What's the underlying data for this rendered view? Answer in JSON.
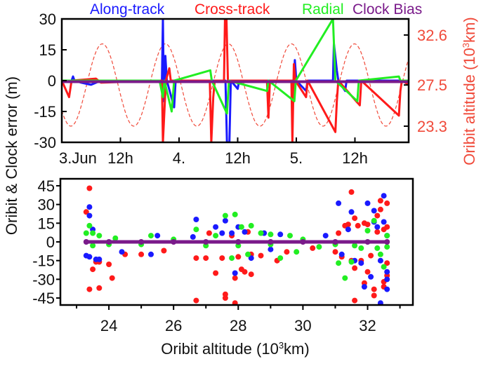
{
  "colors": {
    "along": "#1a1aff",
    "cross": "#ff1a1a",
    "radial": "#22ee22",
    "clock": "#7a1a8a",
    "altitude": "#f04a3a"
  },
  "y_title": "Oribit & Clock error (m)",
  "right_title": {
    "pre": "Oribit altitude  (10",
    "sup": "3",
    "post": "km)"
  },
  "bottom_x_title": {
    "pre": "Oribit altitude  (10",
    "sup": "3",
    "post": "km)"
  },
  "chart_data": [
    {
      "type": "line",
      "title": "",
      "legend": [
        "Along-track",
        "Cross-track",
        "Radial",
        "Clock Bias"
      ],
      "legend_placement": "top",
      "xlabel": "",
      "ylabel": "Oribit & Clock error (m)",
      "x_units": "hours since 3 Jun 00:00",
      "xlim": [
        0,
        71
      ],
      "ylim": [
        -30,
        30
      ],
      "y_ticks": [
        30,
        15,
        0,
        -15,
        -30
      ],
      "x_ticks": [
        {
          "x": 0,
          "label": "3.Jun"
        },
        {
          "x": 12,
          "label": "12h"
        },
        {
          "x": 24,
          "label": "4."
        },
        {
          "x": 36,
          "label": "12h"
        },
        {
          "x": 48,
          "label": "5."
        },
        {
          "x": 60,
          "label": "12h"
        }
      ],
      "right_axis": {
        "label": "Oribit altitude (10^3km)",
        "ylim": [
          21.65,
          34.24
        ],
        "ticks": [
          "32.6",
          "27.5",
          "23.3"
        ],
        "tick_values": [
          32.6,
          27.5,
          23.3
        ]
      },
      "altitude_curve": {
        "mean": 27.5,
        "amplitude": 4.2,
        "period_hours": 12.9,
        "peak_hour": 8.3,
        "style": "dashed"
      },
      "series": [
        {
          "name": "Along-track",
          "key": "along",
          "points": [
            [
              0,
              0
            ],
            [
              2,
              0
            ],
            [
              2.3,
              2
            ],
            [
              2.6,
              0
            ],
            [
              4,
              -1
            ],
            [
              6,
              -2
            ],
            [
              8,
              0
            ],
            [
              20,
              0
            ],
            [
              20.5,
              0
            ],
            [
              20.7,
              30
            ],
            [
              20.9,
              -10
            ],
            [
              21.2,
              12
            ],
            [
              21.5,
              0
            ],
            [
              23,
              -13
            ],
            [
              23.3,
              0
            ],
            [
              33.5,
              0
            ],
            [
              33.8,
              -30
            ],
            [
              34.3,
              -30
            ],
            [
              34.6,
              0
            ],
            [
              36,
              -4
            ],
            [
              36.3,
              0
            ],
            [
              47.5,
              0
            ],
            [
              47.7,
              10
            ],
            [
              48,
              0
            ],
            [
              50,
              -5
            ],
            [
              50.3,
              0
            ],
            [
              55.5,
              0
            ],
            [
              55.7,
              18
            ],
            [
              56.3,
              5
            ],
            [
              56.6,
              0
            ],
            [
              58,
              -5
            ],
            [
              58.3,
              0
            ],
            [
              71,
              0
            ]
          ]
        },
        {
          "name": "Cross-track",
          "key": "cross",
          "points": [
            [
              0,
              0
            ],
            [
              1.5,
              -8
            ],
            [
              2,
              0
            ],
            [
              7,
              1
            ],
            [
              8,
              -1
            ],
            [
              20.5,
              0
            ],
            [
              20.7,
              -30
            ],
            [
              21,
              -15
            ],
            [
              21.3,
              0
            ],
            [
              22,
              6
            ],
            [
              22.3,
              0
            ],
            [
              30.3,
              0
            ],
            [
              30.6,
              -30
            ],
            [
              31,
              -8
            ],
            [
              31.3,
              0
            ],
            [
              33.2,
              0
            ],
            [
              33.4,
              30
            ],
            [
              33.7,
              30
            ],
            [
              34,
              0
            ],
            [
              42,
              0
            ],
            [
              42.3,
              -18
            ],
            [
              42.6,
              0
            ],
            [
              47,
              0
            ],
            [
              47.2,
              -30
            ],
            [
              47.5,
              8
            ],
            [
              47.8,
              0
            ],
            [
              50,
              -8
            ],
            [
              50.3,
              0
            ],
            [
              56,
              -25
            ],
            [
              56.3,
              -10
            ],
            [
              56.6,
              0
            ],
            [
              61,
              -12
            ],
            [
              61.3,
              0
            ],
            [
              69,
              -17
            ],
            [
              69.3,
              -5
            ],
            [
              69.6,
              0
            ],
            [
              71,
              -2
            ]
          ]
        },
        {
          "name": "Radial",
          "key": "radial",
          "points": [
            [
              0,
              0
            ],
            [
              20,
              0
            ],
            [
              20.7,
              -8
            ],
            [
              21,
              0
            ],
            [
              22.5,
              -15
            ],
            [
              23,
              0
            ],
            [
              30.4,
              5
            ],
            [
              30.7,
              0
            ],
            [
              33.8,
              -16
            ],
            [
              34.2,
              0
            ],
            [
              42,
              -5
            ],
            [
              42.3,
              0
            ],
            [
              47.6,
              -10
            ],
            [
              47.9,
              0
            ],
            [
              55.5,
              30
            ],
            [
              56,
              0
            ],
            [
              60.5,
              -10
            ],
            [
              60.8,
              0
            ],
            [
              69,
              2
            ],
            [
              69.3,
              0
            ],
            [
              71,
              0
            ]
          ]
        },
        {
          "name": "Clock Bias",
          "key": "clock",
          "points": [
            [
              0,
              -0.5
            ],
            [
              71,
              -0.5
            ]
          ]
        }
      ]
    },
    {
      "type": "scatter",
      "title": "",
      "xlabel": "Oribit altitude (10^3km)",
      "ylabel": "Oribit & Clock error (m)",
      "xlim": [
        22.5,
        33.4
      ],
      "ylim": [
        -50.6,
        50.6
      ],
      "x_ticks": [
        24,
        26,
        28,
        30,
        32
      ],
      "x_minor_ticks": [
        23,
        25,
        27,
        29,
        31,
        33
      ],
      "y_ticks": [
        45,
        30,
        15,
        0,
        -15,
        -30,
        -45
      ],
      "series": [
        {
          "name": "Along-track",
          "key": "along",
          "points": [
            [
              23.4,
              28
            ],
            [
              23.4,
              21
            ],
            [
              23.3,
              -11
            ],
            [
              23.4,
              -12
            ],
            [
              23.5,
              10
            ],
            [
              23.6,
              -14
            ],
            [
              23.7,
              -14
            ],
            [
              24.4,
              -8
            ],
            [
              25.3,
              -10
            ],
            [
              25.5,
              5
            ],
            [
              26.7,
              18
            ],
            [
              26.6,
              4
            ],
            [
              27.3,
              12
            ],
            [
              27.5,
              7
            ],
            [
              27.6,
              17
            ],
            [
              27.9,
              -25
            ],
            [
              27.8,
              7
            ],
            [
              28.0,
              12
            ],
            [
              28.2,
              8
            ],
            [
              28.4,
              -13
            ],
            [
              28.8,
              7
            ],
            [
              29.0,
              -6
            ],
            [
              29.3,
              6
            ],
            [
              30.7,
              5
            ],
            [
              31.1,
              31
            ],
            [
              31.2,
              -10
            ],
            [
              31.5,
              24
            ],
            [
              31.4,
              10
            ],
            [
              31.6,
              -15
            ],
            [
              31.8,
              -17
            ],
            [
              32.0,
              31
            ],
            [
              32.1,
              -28
            ],
            [
              32.2,
              25
            ],
            [
              32.3,
              12
            ],
            [
              32.4,
              -49
            ],
            [
              32.5,
              37
            ],
            [
              32.6,
              -24
            ],
            [
              32.6,
              -38
            ],
            [
              32.6,
              -30
            ],
            [
              31.9,
              -36
            ],
            [
              32.2,
              16
            ],
            [
              32.4,
              -15
            ],
            [
              32.6,
              5
            ],
            [
              32.5,
              16
            ]
          ]
        },
        {
          "name": "Cross-track",
          "key": "cross",
          "points": [
            [
              23.3,
              24
            ],
            [
              23.4,
              43
            ],
            [
              23.4,
              -38
            ],
            [
              23.6,
              -16
            ],
            [
              23.5,
              -22
            ],
            [
              23.7,
              -37
            ],
            [
              23.7,
              -16
            ],
            [
              24.0,
              -18
            ],
            [
              24.1,
              -29
            ],
            [
              24.5,
              -10
            ],
            [
              25.0,
              -10
            ],
            [
              25.7,
              -7
            ],
            [
              26.7,
              -13
            ],
            [
              26.7,
              -47
            ],
            [
              27.0,
              -13
            ],
            [
              27.1,
              7
            ],
            [
              27.3,
              -25
            ],
            [
              27.5,
              -13
            ],
            [
              27.6,
              -42
            ],
            [
              27.6,
              -45
            ],
            [
              27.8,
              5
            ],
            [
              27.9,
              -29
            ],
            [
              27.9,
              -49
            ],
            [
              28.0,
              -12
            ],
            [
              28.1,
              -22
            ],
            [
              28.2,
              -24
            ],
            [
              28.3,
              8
            ],
            [
              28.4,
              -26
            ],
            [
              28.4,
              -10
            ],
            [
              28.7,
              -11
            ],
            [
              29.2,
              -15
            ],
            [
              29.5,
              -8
            ],
            [
              30.3,
              -5
            ],
            [
              31.0,
              -8
            ],
            [
              31.1,
              7
            ],
            [
              31.2,
              -12
            ],
            [
              31.3,
              13
            ],
            [
              31.4,
              14
            ],
            [
              31.5,
              40
            ],
            [
              31.5,
              -15
            ],
            [
              31.6,
              19
            ],
            [
              31.6,
              -21
            ],
            [
              31.6,
              -47
            ],
            [
              31.8,
              -15
            ],
            [
              31.9,
              -33
            ],
            [
              32.0,
              -24
            ],
            [
              32.1,
              -11
            ],
            [
              32.2,
              -38
            ],
            [
              32.2,
              -43
            ],
            [
              32.3,
              21
            ],
            [
              32.4,
              26
            ],
            [
              32.4,
              33
            ],
            [
              32.5,
              -36
            ],
            [
              32.5,
              -32
            ],
            [
              32.6,
              31
            ],
            [
              32.6,
              -27
            ],
            [
              32.6,
              12
            ],
            [
              32.6,
              -17
            ],
            [
              32.5,
              10
            ],
            [
              32.3,
              8
            ],
            [
              32.0,
              14
            ],
            [
              31.7,
              13
            ],
            [
              31.9,
              15
            ]
          ]
        },
        {
          "name": "Radial",
          "key": "radial",
          "points": [
            [
              23.3,
              7
            ],
            [
              23.4,
              13
            ],
            [
              23.5,
              7
            ],
            [
              23.7,
              5
            ],
            [
              24.2,
              3
            ],
            [
              25.3,
              5
            ],
            [
              26.7,
              10
            ],
            [
              27.3,
              5
            ],
            [
              27.6,
              21
            ],
            [
              27.9,
              22
            ],
            [
              27.8,
              -13
            ],
            [
              28.1,
              12
            ],
            [
              28.4,
              13
            ],
            [
              28.3,
              -10
            ],
            [
              28.7,
              7
            ],
            [
              29.0,
              6
            ],
            [
              29.3,
              -13
            ],
            [
              29.6,
              5
            ],
            [
              29.8,
              -8
            ],
            [
              30.5,
              -4
            ],
            [
              31.1,
              -17
            ],
            [
              31.3,
              -29
            ],
            [
              31.5,
              -16
            ],
            [
              32.0,
              9
            ],
            [
              32.2,
              17
            ],
            [
              32.4,
              -10
            ],
            [
              32.5,
              -20
            ],
            [
              32.6,
              -4
            ],
            [
              32.6,
              5
            ],
            [
              32.3,
              -5
            ],
            [
              31.8,
              -5
            ],
            [
              31.6,
              -3
            ],
            [
              23.5,
              -3
            ],
            [
              24.0,
              -2
            ],
            [
              25.0,
              -2
            ],
            [
              26.0,
              2
            ],
            [
              27.0,
              -3
            ],
            [
              28.0,
              -3
            ],
            [
              29.0,
              -2
            ],
            [
              30.0,
              2
            ],
            [
              31.0,
              -2
            ]
          ]
        },
        {
          "name": "Clock Bias",
          "key": "clock",
          "points": [
            [
              23.3,
              0
            ],
            [
              24,
              0
            ],
            [
              25,
              0
            ],
            [
              26,
              0
            ],
            [
              27,
              0
            ],
            [
              28,
              0
            ],
            [
              29,
              0
            ],
            [
              30,
              0
            ],
            [
              31,
              0
            ],
            [
              32,
              0
            ],
            [
              32.6,
              0
            ]
          ]
        }
      ]
    }
  ]
}
